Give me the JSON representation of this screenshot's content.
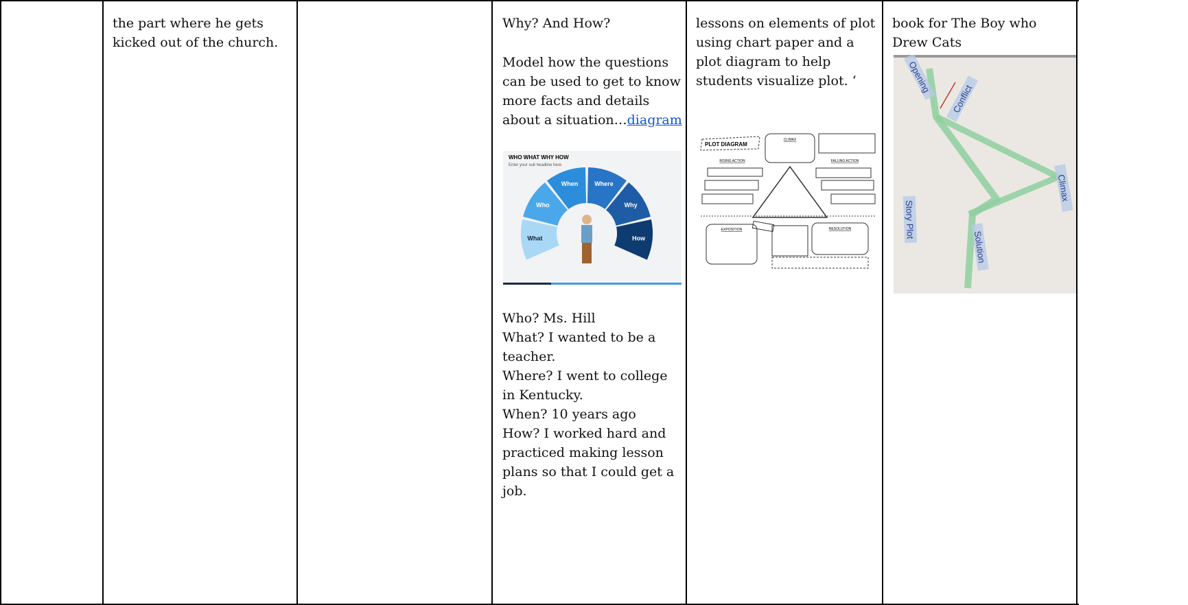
{
  "table": {
    "row": {
      "cell_2": {
        "text": "the part where he gets kicked out of the church."
      },
      "cell_4": {
        "heading": "Why? And How?",
        "paragraph": "Model how the questions can be used to get to know more facts and details about a situation…",
        "link": "diagram",
        "figure": {
          "title": "WHO WHAT WHY HOW",
          "subtitle": "Enter your sub headline here",
          "segments": [
            "What",
            "Who",
            "When",
            "Where",
            "Why",
            "How"
          ]
        },
        "lines": [
          "Who? Ms. Hill",
          "What? I wanted to be a teacher.",
          "Where? I went to college in Kentucky.",
          "When? 10 years ago",
          "How? I worked hard and practiced making lesson plans so that I could get a job."
        ]
      },
      "cell_5": {
        "text": "lessons on elements of plot using chart paper and a plot diagram to help students visualize plot. ‘",
        "figure": {
          "title": "PLOT DIAGRAM",
          "labels": [
            "CLIMAX",
            "RISING ACTION",
            "FALLING ACTION",
            "EXPOSITION",
            "RESOLUTION"
          ]
        }
      },
      "cell_6": {
        "text": "book for The Boy who Drew Cats",
        "photo": {
          "labels": [
            "Opening",
            "Conflict",
            "Climax",
            "Story Plot",
            "Solution"
          ]
        }
      }
    }
  }
}
